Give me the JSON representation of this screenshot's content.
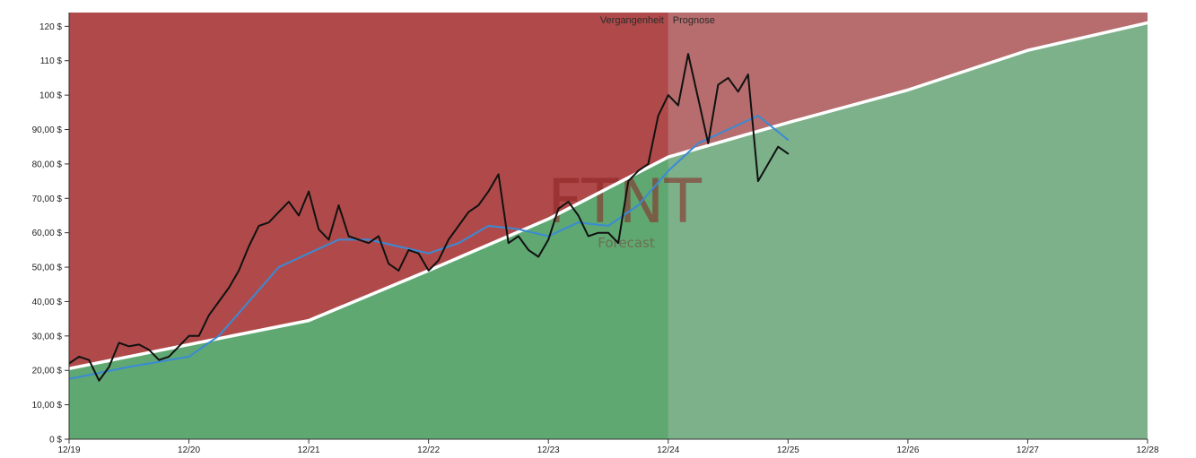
{
  "chart_data": {
    "type": "line",
    "watermark": {
      "ticker": "FTNT",
      "site": "Forecast"
    },
    "periods": {
      "past_label": "Vergangenheit",
      "future_label": "Prognose",
      "divider_x": "2024-12"
    },
    "colors": {
      "above_band": "#b04a4a",
      "below_band": "#5fa872",
      "trend_line": "#ffffff",
      "price_line": "#111111",
      "moving_average": "#3a8ad6"
    },
    "x_range": [
      "2019-12",
      "2028-12"
    ],
    "y_range": [
      0,
      124
    ],
    "x_ticks": [
      {
        "x": "2019-12",
        "label": "12/19"
      },
      {
        "x": "2020-12",
        "label": "12/20"
      },
      {
        "x": "2021-12",
        "label": "12/21"
      },
      {
        "x": "2022-12",
        "label": "12/22"
      },
      {
        "x": "2023-12",
        "label": "12/23"
      },
      {
        "x": "2024-12",
        "label": "12/24"
      },
      {
        "x": "2025-12",
        "label": "12/25"
      },
      {
        "x": "2026-12",
        "label": "12/26"
      },
      {
        "x": "2027-12",
        "label": "12/27"
      },
      {
        "x": "2028-12",
        "label": "12/28"
      }
    ],
    "y_ticks": [
      {
        "y": 0,
        "label": "0 $"
      },
      {
        "y": 10,
        "label": "10,00 $"
      },
      {
        "y": 20,
        "label": "20,00 $"
      },
      {
        "y": 30,
        "label": "30,00 $"
      },
      {
        "y": 40,
        "label": "40,00 $"
      },
      {
        "y": 50,
        "label": "50,00 $"
      },
      {
        "y": 60,
        "label": "60,00 $"
      },
      {
        "y": 70,
        "label": "70,00 $"
      },
      {
        "y": 80,
        "label": "80,00 $"
      },
      {
        "y": 90,
        "label": "90,00 $"
      },
      {
        "y": 100,
        "label": "100 $"
      },
      {
        "y": 110,
        "label": "110 $"
      },
      {
        "y": 120,
        "label": "120 $"
      }
    ],
    "series": [
      {
        "role": "trend",
        "points": [
          [
            "2019-12",
            20.5
          ],
          [
            "2021-12",
            34.5
          ],
          [
            "2022-12",
            49
          ],
          [
            "2023-12",
            64
          ],
          [
            "2024-12",
            82
          ],
          [
            "2025-12",
            92
          ],
          [
            "2026-12",
            101.5
          ],
          [
            "2027-12",
            113
          ],
          [
            "2028-12",
            121
          ]
        ]
      },
      {
        "role": "price",
        "points": [
          [
            "2019-12",
            22
          ],
          [
            "2020-01",
            24
          ],
          [
            "2020-02",
            23
          ],
          [
            "2020-03",
            17
          ],
          [
            "2020-04",
            21
          ],
          [
            "2020-05",
            28
          ],
          [
            "2020-06",
            27
          ],
          [
            "2020-07",
            27.5
          ],
          [
            "2020-08",
            26
          ],
          [
            "2020-09",
            23
          ],
          [
            "2020-10",
            24
          ],
          [
            "2020-11",
            27
          ],
          [
            "2020-12",
            30
          ],
          [
            "2021-01",
            30
          ],
          [
            "2021-02",
            36
          ],
          [
            "2021-03",
            40
          ],
          [
            "2021-04",
            44
          ],
          [
            "2021-05",
            49
          ],
          [
            "2021-06",
            56
          ],
          [
            "2021-07",
            62
          ],
          [
            "2021-08",
            63
          ],
          [
            "2021-09",
            66
          ],
          [
            "2021-10",
            69
          ],
          [
            "2021-11",
            65
          ],
          [
            "2021-12",
            72
          ],
          [
            "2022-01",
            61
          ],
          [
            "2022-02",
            58
          ],
          [
            "2022-03",
            68
          ],
          [
            "2022-04",
            59
          ],
          [
            "2022-05",
            58
          ],
          [
            "2022-06",
            57
          ],
          [
            "2022-07",
            59
          ],
          [
            "2022-08",
            51
          ],
          [
            "2022-09",
            49
          ],
          [
            "2022-10",
            55
          ],
          [
            "2022-11",
            54
          ],
          [
            "2022-12",
            49
          ],
          [
            "2023-01",
            52
          ],
          [
            "2023-02",
            58
          ],
          [
            "2023-03",
            62
          ],
          [
            "2023-04",
            66
          ],
          [
            "2023-05",
            68
          ],
          [
            "2023-06",
            72
          ],
          [
            "2023-07",
            77
          ],
          [
            "2023-08",
            57
          ],
          [
            "2023-09",
            59
          ],
          [
            "2023-10",
            55
          ],
          [
            "2023-11",
            53
          ],
          [
            "2023-12",
            58
          ],
          [
            "2024-01",
            67
          ],
          [
            "2024-02",
            69
          ],
          [
            "2024-03",
            65
          ],
          [
            "2024-04",
            59
          ],
          [
            "2024-05",
            60
          ],
          [
            "2024-06",
            60
          ],
          [
            "2024-07",
            57
          ],
          [
            "2024-08",
            75
          ],
          [
            "2024-09",
            78
          ],
          [
            "2024-10",
            80
          ],
          [
            "2024-11",
            94
          ],
          [
            "2024-12",
            100
          ],
          [
            "2025-01",
            97
          ],
          [
            "2025-02",
            112
          ],
          [
            "2025-03",
            99
          ],
          [
            "2025-04",
            86
          ],
          [
            "2025-05",
            103
          ],
          [
            "2025-06",
            105
          ],
          [
            "2025-07",
            101
          ],
          [
            "2025-08",
            106
          ],
          [
            "2025-09",
            75
          ],
          [
            "2025-10",
            80
          ],
          [
            "2025-11",
            85
          ],
          [
            "2025-12",
            83
          ]
        ]
      },
      {
        "role": "moving-average",
        "points": [
          [
            "2019-12",
            17.5
          ],
          [
            "2020-06",
            21
          ],
          [
            "2020-12",
            24
          ],
          [
            "2021-03",
            30
          ],
          [
            "2021-06",
            40
          ],
          [
            "2021-09",
            50
          ],
          [
            "2021-12",
            54
          ],
          [
            "2022-03",
            58
          ],
          [
            "2022-06",
            58
          ],
          [
            "2022-09",
            56
          ],
          [
            "2022-12",
            54
          ],
          [
            "2023-03",
            57
          ],
          [
            "2023-06",
            62
          ],
          [
            "2023-09",
            61
          ],
          [
            "2023-12",
            59
          ],
          [
            "2024-03",
            63
          ],
          [
            "2024-06",
            62
          ],
          [
            "2024-09",
            68
          ],
          [
            "2024-12",
            78
          ],
          [
            "2025-03",
            86
          ],
          [
            "2025-06",
            90
          ],
          [
            "2025-09",
            94
          ],
          [
            "2025-12",
            87
          ]
        ]
      }
    ]
  }
}
